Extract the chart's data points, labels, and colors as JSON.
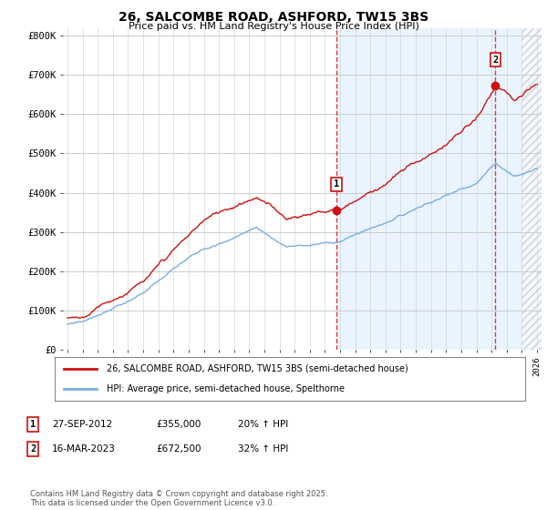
{
  "title": "26, SALCOMBE ROAD, ASHFORD, TW15 3BS",
  "subtitle": "Price paid vs. HM Land Registry's House Price Index (HPI)",
  "ylabel_ticks": [
    "£0",
    "£100K",
    "£200K",
    "£300K",
    "£400K",
    "£500K",
    "£600K",
    "£700K",
    "£800K"
  ],
  "ytick_values": [
    0,
    100000,
    200000,
    300000,
    400000,
    500000,
    600000,
    700000,
    800000
  ],
  "ylim": [
    0,
    820000
  ],
  "xlim_left": 1994.7,
  "xlim_right": 2026.3,
  "background_color": "#ffffff",
  "grid_color": "#cccccc",
  "shade_color": "#ddeeff",
  "line_color_hpi": "#7aade0",
  "line_color_price": "#cc1111",
  "ann1_x": 2012.75,
  "ann1_y": 355000,
  "ann2_x": 2023.25,
  "ann2_y": 672500,
  "vline1_x": 2012.75,
  "vline2_x": 2023.25,
  "legend_label1": "26, SALCOMBE ROAD, ASHFORD, TW15 3BS (semi-detached house)",
  "legend_label2": "HPI: Average price, semi-detached house, Spelthorne",
  "table_row1": [
    "1",
    "27-SEP-2012",
    "£355,000",
    "20% ↑ HPI"
  ],
  "table_row2": [
    "2",
    "16-MAR-2023",
    "£672,500",
    "32% ↑ HPI"
  ],
  "footer": "Contains HM Land Registry data © Crown copyright and database right 2025.\nThis data is licensed under the Open Government Licence v3.0."
}
